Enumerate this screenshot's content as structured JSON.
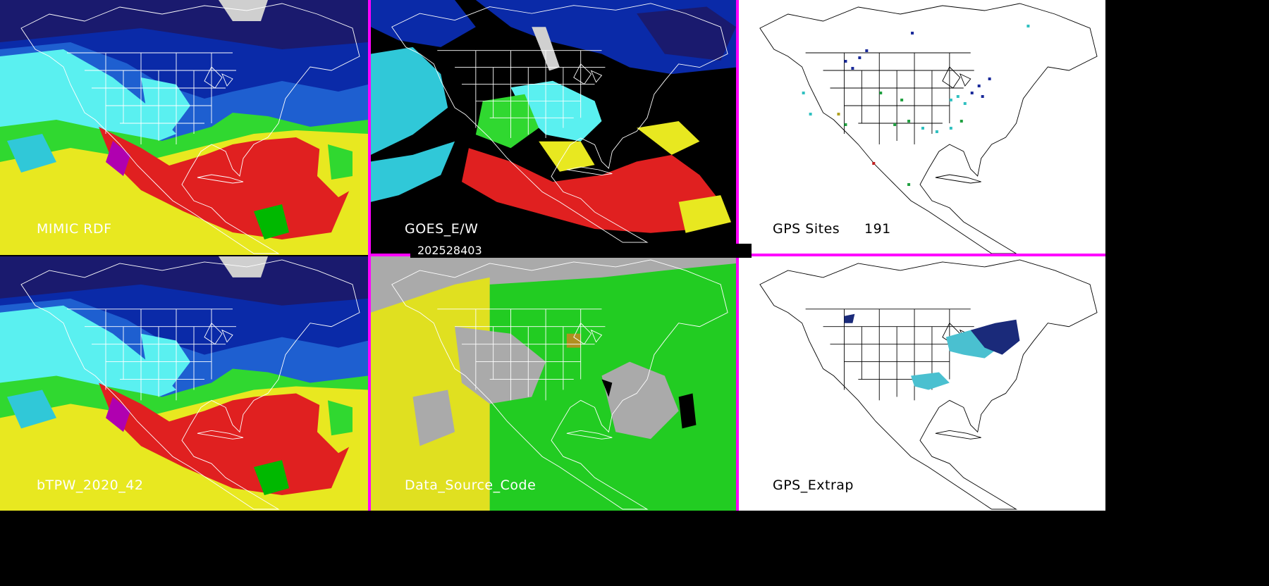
{
  "panels": [
    {
      "id": "mimic",
      "label": "MIMIC RDF",
      "style": "tpw"
    },
    {
      "id": "goes",
      "label": "GOES_E/W",
      "style": "goes"
    },
    {
      "id": "gps_sites",
      "label": "GPS Sites",
      "count": "191",
      "style": "sites"
    },
    {
      "id": "btpw",
      "label": "bTPW_2020_42",
      "style": "tpw"
    },
    {
      "id": "dsc",
      "label": "Data_Source_Code",
      "style": "dsc"
    },
    {
      "id": "gps_extrap",
      "label": "GPS_Extrap",
      "style": "extrap"
    }
  ],
  "timestamp": "202528403",
  "colors": {
    "separator": "#ff00ff",
    "tpw_bands": [
      "#1a1a6e",
      "#0a2aa8",
      "#1e5fd0",
      "#30c8d8",
      "#5af0f0",
      "#30d830",
      "#00b800",
      "#e8e820",
      "#e02020",
      "#b000b0"
    ],
    "goes_bg": "#000000",
    "dsc_gray": "#aaaaaa",
    "dsc_yellow": "#e0e020",
    "dsc_green": "#22cc22",
    "map_lines": "#ffffff",
    "outline_lines": "#000000"
  }
}
